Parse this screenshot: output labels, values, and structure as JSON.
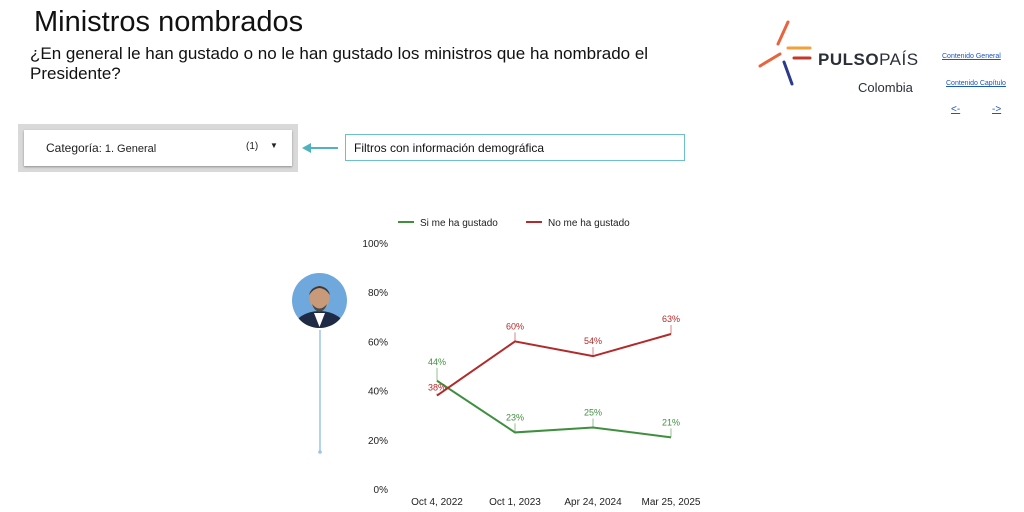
{
  "header": {
    "title": "Ministros nombrados",
    "question": "¿En general le han gustado o no le han gustado los ministros que ha nombrado el Presidente?"
  },
  "logo": {
    "brand_bold": "PULSO",
    "brand_thin": "PAÍS",
    "subtitle": "Colombia",
    "colors": [
      "#e8643c",
      "#f2a13a",
      "#2a3a8c",
      "#c0392b"
    ]
  },
  "nav": {
    "general_label": "Contenido General",
    "chapter_label": "Contenido Capítulo",
    "prev_label": "<-",
    "next_label": "->"
  },
  "filter": {
    "label": "Categoría",
    "value": "1. General",
    "count": "(1)",
    "caret_icon": "caret-down-icon"
  },
  "demographic_note": "Filtros con información demográfica",
  "chart_data": {
    "type": "line",
    "categories": [
      "Oct 4, 2022",
      "Oct 1, 2023",
      "Apr 24, 2024",
      "Mar 25, 2025"
    ],
    "series": [
      {
        "name": "Si me ha gustado",
        "values": [
          44,
          23,
          25,
          21
        ],
        "labels": [
          "44%",
          "23%",
          "25%",
          "21%"
        ],
        "color": "#3f8f3f"
      },
      {
        "name": "No me ha gustado",
        "values": [
          38,
          60,
          54,
          63
        ],
        "labels": [
          "38%",
          "60%",
          "54%",
          "63%"
        ],
        "color": "#b22a2a"
      }
    ],
    "ylim": [
      0,
      100
    ],
    "yticks": [
      "0%",
      "20%",
      "40%",
      "60%",
      "80%",
      "100%"
    ],
    "ytick_values": [
      0,
      20,
      40,
      60,
      80,
      100
    ],
    "grid": false,
    "legend": "top"
  }
}
